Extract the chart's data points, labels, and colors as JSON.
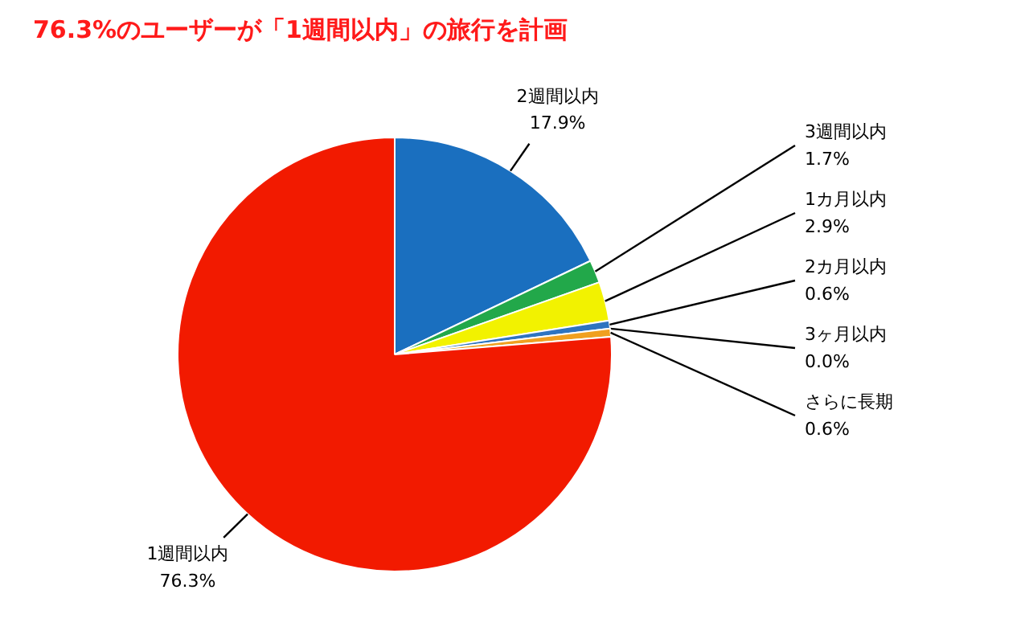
{
  "chart_data": {
    "type": "pie",
    "title": "76.3%のユーザーが「1週間以内」の旅行を計画",
    "categories": [
      "2週間以内",
      "3週間以内",
      "1カ月以内",
      "2カ月以内",
      "3ヶ月以内",
      "さらに長期",
      "1週間以内"
    ],
    "values": [
      17.9,
      1.7,
      2.9,
      0.6,
      0.0,
      0.6,
      76.3
    ],
    "colors": [
      "#1a6fbf",
      "#22a84a",
      "#f2f200",
      "#2e74c0",
      "#7f7f7f",
      "#f0a020",
      "#f21a00"
    ],
    "value_labels": [
      "17.9%",
      "1.7%",
      "2.9%",
      "0.6%",
      "0.0%",
      "0.6%",
      "76.3%"
    ]
  }
}
